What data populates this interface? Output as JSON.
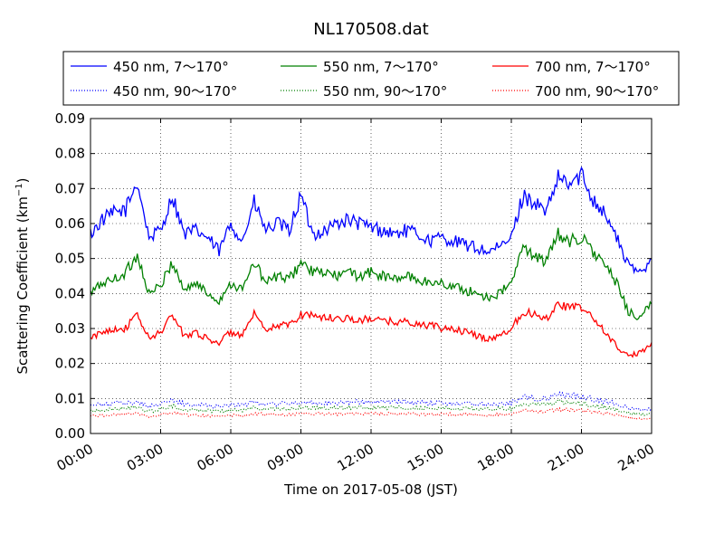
{
  "chart_data": {
    "type": "line",
    "title": "NL170508.dat",
    "xlabel": "Time on 2017-05-08 (JST)",
    "ylabel": "Scattering Coefficient (km",
    "ylabel_sup": "−1",
    "ylabel_end": ")",
    "xlim": [
      "00:00",
      "24:00"
    ],
    "ylim": [
      0,
      0.09
    ],
    "grid": true,
    "legend_position": "top (above plot), 3 columns",
    "x_ticks": [
      "00:00",
      "03:00",
      "06:00",
      "09:00",
      "12:00",
      "15:00",
      "18:00",
      "21:00",
      "24:00"
    ],
    "y_ticks": [
      "0.00",
      "0.01",
      "0.02",
      "0.03",
      "0.04",
      "0.05",
      "0.06",
      "0.07",
      "0.08",
      "0.09"
    ],
    "x": [
      "00:00",
      "00:30",
      "01:00",
      "01:30",
      "02:00",
      "02:30",
      "03:00",
      "03:30",
      "04:00",
      "04:30",
      "05:00",
      "05:30",
      "06:00",
      "06:30",
      "07:00",
      "07:30",
      "08:00",
      "08:30",
      "09:00",
      "09:30",
      "10:00",
      "10:30",
      "11:00",
      "11:30",
      "12:00",
      "12:30",
      "13:00",
      "13:30",
      "14:00",
      "14:30",
      "15:00",
      "15:30",
      "16:00",
      "16:30",
      "17:00",
      "17:30",
      "18:00",
      "18:30",
      "19:00",
      "19:30",
      "20:00",
      "20:30",
      "21:00",
      "21:30",
      "22:00",
      "22:30",
      "23:00",
      "23:30",
      "24:00"
    ],
    "series": [
      {
        "name": "450 nm, 7～170°",
        "color": "#0000ff",
        "style": "solid",
        "values": [
          0.057,
          0.061,
          0.063,
          0.064,
          0.072,
          0.056,
          0.058,
          0.068,
          0.057,
          0.058,
          0.056,
          0.052,
          0.06,
          0.055,
          0.066,
          0.058,
          0.06,
          0.058,
          0.068,
          0.057,
          0.058,
          0.06,
          0.061,
          0.06,
          0.059,
          0.058,
          0.057,
          0.058,
          0.057,
          0.055,
          0.056,
          0.055,
          0.054,
          0.053,
          0.052,
          0.053,
          0.056,
          0.068,
          0.066,
          0.063,
          0.073,
          0.071,
          0.074,
          0.067,
          0.063,
          0.056,
          0.048,
          0.046,
          0.05
        ]
      },
      {
        "name": "550 nm, 7～170°",
        "color": "#008000",
        "style": "solid",
        "values": [
          0.04,
          0.043,
          0.044,
          0.046,
          0.051,
          0.04,
          0.042,
          0.049,
          0.041,
          0.043,
          0.04,
          0.038,
          0.043,
          0.041,
          0.049,
          0.043,
          0.045,
          0.044,
          0.049,
          0.046,
          0.046,
          0.045,
          0.046,
          0.045,
          0.046,
          0.045,
          0.044,
          0.045,
          0.044,
          0.043,
          0.043,
          0.042,
          0.041,
          0.04,
          0.039,
          0.04,
          0.043,
          0.053,
          0.051,
          0.049,
          0.057,
          0.055,
          0.056,
          0.052,
          0.048,
          0.043,
          0.035,
          0.033,
          0.037
        ]
      },
      {
        "name": "700 nm, 7～170°",
        "color": "#ff0000",
        "style": "solid",
        "values": [
          0.027,
          0.029,
          0.03,
          0.03,
          0.034,
          0.027,
          0.029,
          0.034,
          0.028,
          0.029,
          0.027,
          0.026,
          0.029,
          0.028,
          0.034,
          0.029,
          0.031,
          0.031,
          0.034,
          0.034,
          0.033,
          0.033,
          0.033,
          0.032,
          0.033,
          0.032,
          0.032,
          0.032,
          0.031,
          0.031,
          0.03,
          0.03,
          0.029,
          0.028,
          0.027,
          0.028,
          0.03,
          0.035,
          0.034,
          0.033,
          0.037,
          0.036,
          0.036,
          0.033,
          0.029,
          0.025,
          0.022,
          0.023,
          0.026
        ]
      },
      {
        "name": "450 nm, 90～170°",
        "color": "#0000ff",
        "style": "dotted",
        "values": [
          0.008,
          0.0082,
          0.0085,
          0.0087,
          0.009,
          0.0078,
          0.0085,
          0.0095,
          0.0084,
          0.0082,
          0.008,
          0.0078,
          0.0082,
          0.008,
          0.009,
          0.0085,
          0.0085,
          0.0085,
          0.009,
          0.0088,
          0.0088,
          0.0088,
          0.009,
          0.009,
          0.009,
          0.009,
          0.009,
          0.009,
          0.0088,
          0.0088,
          0.0088,
          0.0087,
          0.0086,
          0.0085,
          0.0085,
          0.0085,
          0.0088,
          0.0105,
          0.01,
          0.01,
          0.011,
          0.0108,
          0.0105,
          0.0098,
          0.0092,
          0.0085,
          0.0072,
          0.0068,
          0.007
        ]
      },
      {
        "name": "550 nm, 90～170°",
        "color": "#008000",
        "style": "dotted",
        "values": [
          0.0065,
          0.0067,
          0.007,
          0.0072,
          0.0075,
          0.0063,
          0.007,
          0.0078,
          0.0069,
          0.0067,
          0.0066,
          0.0064,
          0.0068,
          0.0066,
          0.0074,
          0.007,
          0.007,
          0.007,
          0.0074,
          0.0073,
          0.0073,
          0.0073,
          0.0074,
          0.0074,
          0.0074,
          0.0074,
          0.0074,
          0.0074,
          0.0072,
          0.0072,
          0.0072,
          0.0071,
          0.007,
          0.007,
          0.0069,
          0.007,
          0.0072,
          0.0086,
          0.0083,
          0.0082,
          0.009,
          0.0088,
          0.0086,
          0.008,
          0.0075,
          0.0069,
          0.0058,
          0.0055,
          0.0057
        ]
      },
      {
        "name": "700 nm, 90～170°",
        "color": "#ff0000",
        "style": "dotted",
        "values": [
          0.005,
          0.0052,
          0.0054,
          0.0055,
          0.0058,
          0.0048,
          0.0054,
          0.006,
          0.0053,
          0.0052,
          0.005,
          0.0049,
          0.0052,
          0.0051,
          0.0057,
          0.0054,
          0.0054,
          0.0054,
          0.0057,
          0.0056,
          0.0056,
          0.0056,
          0.0057,
          0.0057,
          0.0057,
          0.0057,
          0.0057,
          0.0057,
          0.0055,
          0.0055,
          0.0055,
          0.0055,
          0.0054,
          0.0054,
          0.0053,
          0.0054,
          0.0055,
          0.0066,
          0.0064,
          0.0063,
          0.0069,
          0.0068,
          0.0066,
          0.0062,
          0.0058,
          0.0053,
          0.0045,
          0.0042,
          0.0044
        ]
      }
    ]
  }
}
